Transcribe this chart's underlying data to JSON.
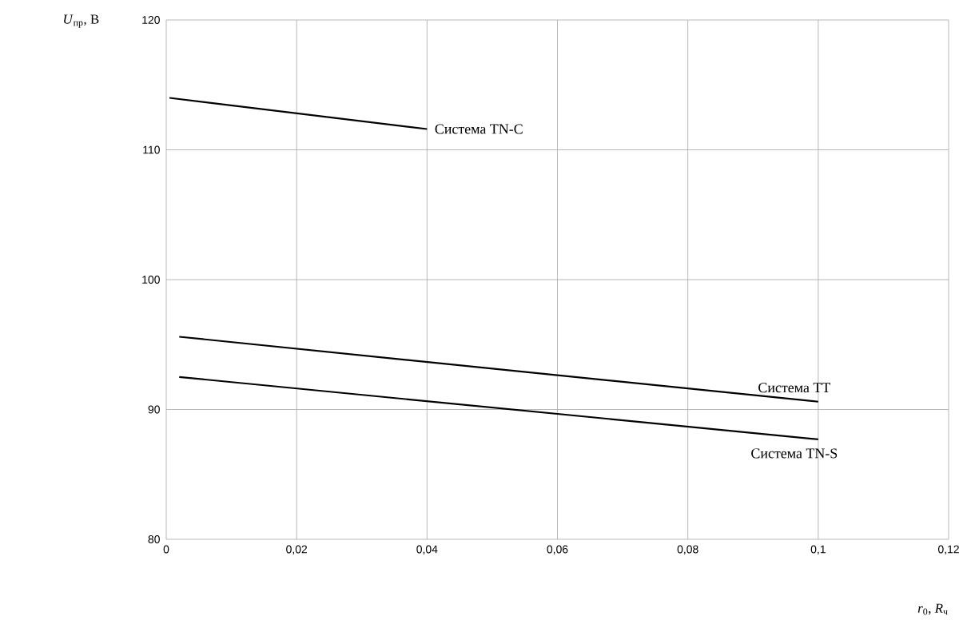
{
  "chart_data": {
    "type": "line",
    "xlabel": "*r*$_{0}$, *R*$_{ч}$",
    "ylabel": "*U*$_{пр}$, В",
    "xlim": [
      0,
      0.12
    ],
    "ylim": [
      80,
      120
    ],
    "xticks": [
      0,
      {
        "value": 0.02,
        "label": "0,02"
      },
      {
        "value": 0.04,
        "label": "0,04"
      },
      {
        "value": 0.06,
        "label": "0,06"
      },
      {
        "value": 0.08,
        "label": "0,08"
      },
      {
        "value": 0.1,
        "label": "0,1"
      },
      {
        "value": 0.12,
        "label": "0,12"
      }
    ],
    "yticks": [
      80,
      90,
      100,
      110,
      120
    ],
    "grid": true,
    "series": [
      {
        "name": "Система TN-C",
        "color": "#000000",
        "x": [
          0.0005,
          0.04
        ],
        "values": [
          114.0,
          111.6
        ]
      },
      {
        "name": "Система TT",
        "color": "#000000",
        "x": [
          0.002,
          0.1
        ],
        "values": [
          95.6,
          90.6
        ]
      },
      {
        "name": "Система TN-S",
        "color": "#000000",
        "x": [
          0.002,
          0.1
        ],
        "values": [
          92.5,
          87.7
        ]
      }
    ]
  }
}
